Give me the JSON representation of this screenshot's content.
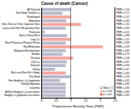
{
  "chart_data": {
    "type": "bar",
    "orientation": "horizontal",
    "stacked": true,
    "title": "Cause of death (Cancer)",
    "x_label": "Proportionate Mortality Ratio (PMR)",
    "categories": [
      "All Selected",
      "Non-Hodg. Family Ca.",
      "Esophageal",
      "Melanoma",
      "Other Sites w/ Other Digestive Sites",
      "Larynx and Other Respiratory Sites",
      "Parkinson",
      "Back of Nose/Neck",
      "Lung Ca.",
      "Nasal Paranasal Pharynx Pleura",
      "Skin/Melanoma",
      "Malignant Mesothelioma",
      "Bladder",
      "Prostate",
      "Oral Ca.",
      "Stomach",
      "Kidney",
      "Black and Neck Ex's Hodg.",
      "Thy Gland",
      "Non-Hodgkin's Ly Lymphoma",
      "Multiple Myeloma",
      "Leukemia",
      "All Non-Hodgkin's Ly w/o anthro.",
      "Hodgkin's Lymphoma w/o anthro."
    ],
    "series": [
      {
        "name": "Ratio < 1",
        "color": "#b8b8cc",
        "values": [
          1.0,
          0.72,
          null,
          0.85,
          null,
          0.83,
          0.12,
          0.88,
          null,
          0.83,
          null,
          0.83,
          0.73,
          null,
          0.87,
          0.83,
          0.47,
          null,
          1.0,
          0.63,
          0.83,
          0.83,
          0.83,
          0.83
        ],
        "value_labels": [
          "PMR = 1.00",
          "PMR = 0.72",
          null,
          "PMR = 0.85",
          null,
          "PMR = 0.83",
          "PMR = 0.12",
          "PMR = 0.88",
          null,
          "PMR = 0.83",
          null,
          "PMR = 0.83",
          "PMR = 0.73",
          null,
          "PMR = 0.87",
          "PMR = 0.83",
          "PMR = 0.47",
          null,
          "PMR = 1.00",
          "PMR = 0.63",
          "PMR = 0.83",
          "PMR = 0.83",
          "PMR = 0.83",
          "PMR = 0.83"
        ]
      },
      {
        "name": "p < 0.05",
        "color": "#f4a7a0",
        "values": [
          null,
          null,
          1.01,
          null,
          1.35,
          null,
          null,
          null,
          1.01,
          null,
          2.09,
          null,
          null,
          1.08,
          null,
          null,
          null,
          0.83,
          null,
          null,
          null,
          null,
          null,
          null
        ],
        "value_labels": [
          null,
          null,
          "PMR = 1.01",
          null,
          "PMR = 1.35",
          null,
          null,
          null,
          "PMR = 1.01",
          null,
          "PMR = 2.09",
          null,
          null,
          "PMR = 1.08",
          null,
          null,
          null,
          "PMR = 0.83",
          null,
          null,
          null,
          null,
          null,
          null
        ]
      },
      {
        "name": "p < 0.01",
        "color": "#e05050",
        "values": [
          null,
          null,
          null,
          null,
          null,
          null,
          null,
          null,
          null,
          null,
          null,
          null,
          null,
          null,
          null,
          null,
          null,
          null,
          null,
          null,
          null,
          null,
          null,
          null
        ]
      }
    ],
    "data_labels": true,
    "ref_line": 1.0,
    "xlim": [
      0,
      2.5
    ],
    "xticks": [
      0,
      0.5,
      1,
      1.5,
      2,
      2.5
    ],
    "legend": "lower right"
  }
}
